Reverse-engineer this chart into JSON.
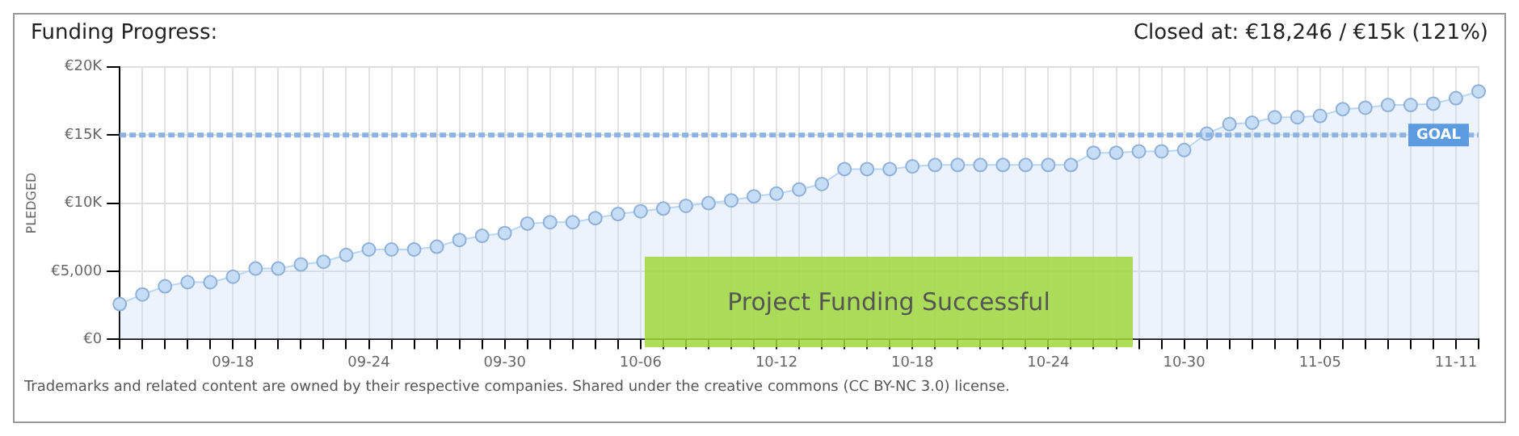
{
  "chart_data": {
    "type": "area",
    "title": "Funding Progress:",
    "subtitle": "Closed at: €18,246 / €15k (121%)",
    "ylabel": "PLEDGED",
    "categories": [
      null,
      null,
      null,
      null,
      null,
      "09-18",
      null,
      null,
      null,
      null,
      null,
      "09-24",
      null,
      null,
      null,
      null,
      null,
      "09-30",
      null,
      null,
      null,
      null,
      null,
      "10-06",
      null,
      null,
      null,
      null,
      null,
      "10-12",
      null,
      null,
      null,
      null,
      null,
      "10-18",
      null,
      null,
      null,
      null,
      null,
      "10-24",
      null,
      null,
      null,
      null,
      null,
      "10-30",
      null,
      null,
      null,
      null,
      null,
      "11-05",
      null,
      null,
      null,
      null,
      null,
      "11-11",
      null
    ],
    "series": [
      {
        "color": "#b8d6f5",
        "values": [
          2600,
          3300,
          3900,
          4200,
          4200,
          4600,
          5200,
          5200,
          5500,
          5700,
          6200,
          6600,
          6600,
          6600,
          6800,
          7300,
          7600,
          7800,
          8500,
          8600,
          8600,
          8900,
          9200,
          9400,
          9600,
          9800,
          10000,
          10200,
          10500,
          10700,
          11000,
          11400,
          12500,
          12500,
          12500,
          12700,
          12800,
          12800,
          12800,
          12800,
          12800,
          12800,
          12800,
          13700,
          13700,
          13800,
          13800,
          13900,
          15100,
          15800,
          15900,
          16300,
          16300,
          16400,
          16900,
          17000,
          17200,
          17200,
          17300,
          17700,
          18200
        ]
      }
    ],
    "ylim": [
      0,
      20000
    ],
    "yticks": [
      {
        "value": 0,
        "label": "€0"
      },
      {
        "value": 5000,
        "label": "€5,000"
      },
      {
        "value": 10000,
        "label": "€10K"
      },
      {
        "value": 15000,
        "label": "€15K"
      },
      {
        "value": 20000,
        "label": "€20K"
      }
    ],
    "grid": true,
    "marker": "circle",
    "legend": false,
    "ref_lines": [
      {
        "axis": "y",
        "value": 15000,
        "label": "GOAL",
        "color": "#8db3e2",
        "line_style": "dashed"
      }
    ],
    "annotations": [
      "Project Funding Successful",
      "Trademarks and related content are owned by their respective companies. Shared under the creative commons (CC BY-NC 3.0) license."
    ]
  }
}
